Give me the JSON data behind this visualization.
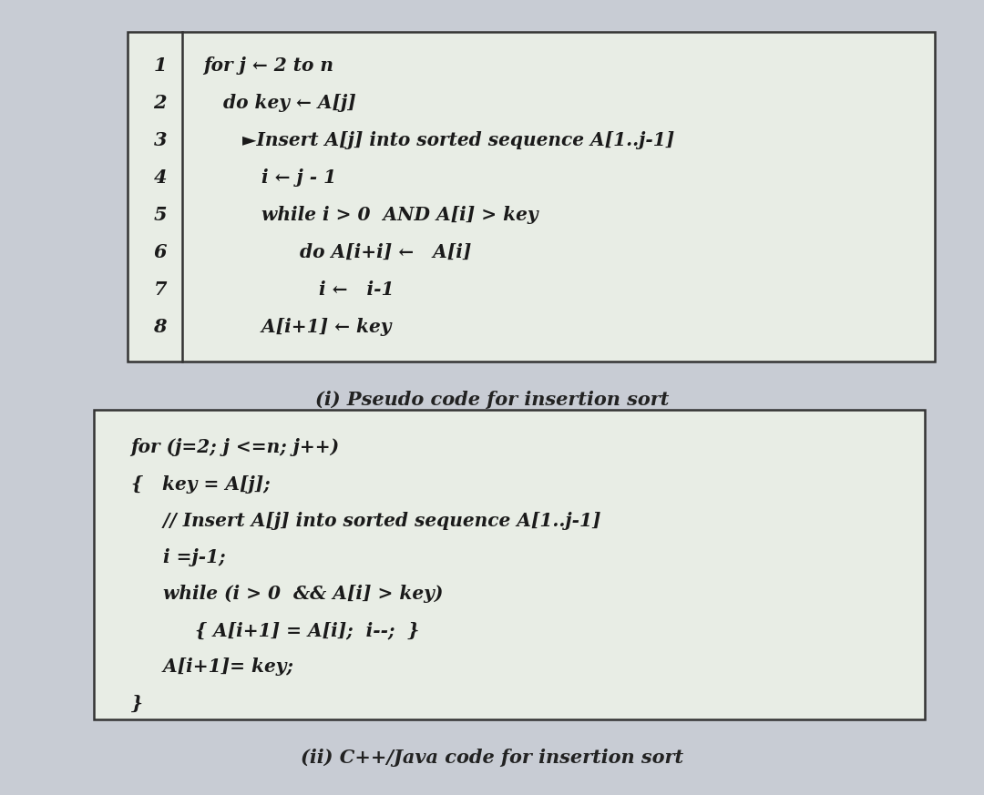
{
  "bg_color": "#c8ccd4",
  "box1_bg": "#e8ede5",
  "box2_bg": "#e8ede5",
  "box_edge_color": "#333333",
  "text_color": "#1a1a1a",
  "caption_color": "#222222",
  "pseudo_lines": [
    [
      "1",
      "for j ← 2 to n"
    ],
    [
      "2",
      "   do key ← A[j]"
    ],
    [
      "3",
      "      ►Insert A[j] into sorted sequence A[1..j-1]"
    ],
    [
      "4",
      "         i ← j - 1"
    ],
    [
      "5",
      "         while i > 0  AND A[i] > key"
    ],
    [
      "6",
      "               do A[i+i] ←   A[i]"
    ],
    [
      "7",
      "                  i ←   i-1"
    ],
    [
      "8",
      "         A[i+1] ← key"
    ]
  ],
  "cpp_lines": [
    "for (j=2; j <=n; j++)",
    "{   key = A[j];",
    "     // Insert A[j] into sorted sequence A[1..j-1]",
    "     i =j-1;",
    "     while (i > 0  && A[i] > key)",
    "          { A[i+1] = A[i];  i--;  }",
    "     A[i+1]= key;",
    "}"
  ],
  "caption1": "(i) Pseudo code for insertion sort",
  "caption2": "(ii) C++/Java code for insertion sort",
  "figsize": [
    10.8,
    8.73
  ],
  "dpi": 100
}
